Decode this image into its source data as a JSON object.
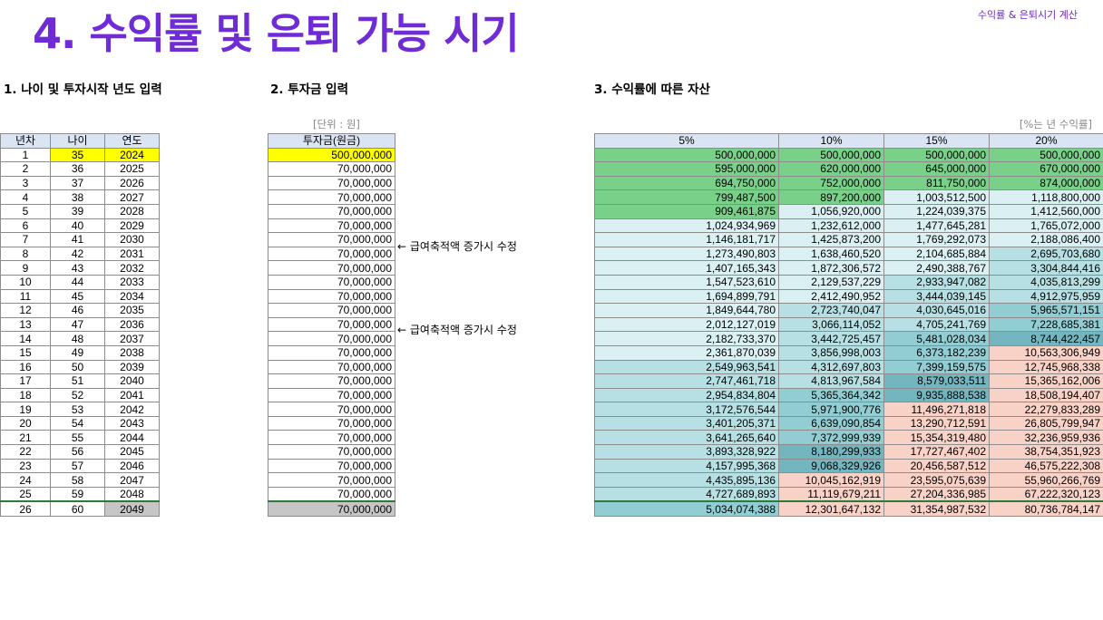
{
  "header": {
    "corner_label": "수익률 & 은퇴시기 계산",
    "title": "4. 수익률 및 은퇴 가능 시기"
  },
  "sections": {
    "s1": "1. 나이 및 투자시작 년도 입력",
    "s2": "2. 투자금 입력",
    "s3": "3. 수익률에 따른 자산"
  },
  "units": {
    "won": "[단위 : 원]",
    "rate": "[%는 년 수익률]"
  },
  "notes": {
    "n1": "← 급여축적액 증가시 수정",
    "n2": "← 급여축적액 증가시 수정"
  },
  "age_table": {
    "headers": [
      "년차",
      "나이",
      "연도"
    ],
    "rows": [
      [
        "1",
        "35",
        "2024"
      ],
      [
        "2",
        "36",
        "2025"
      ],
      [
        "3",
        "37",
        "2026"
      ],
      [
        "4",
        "38",
        "2027"
      ],
      [
        "5",
        "39",
        "2028"
      ],
      [
        "6",
        "40",
        "2029"
      ],
      [
        "7",
        "41",
        "2030"
      ],
      [
        "8",
        "42",
        "2031"
      ],
      [
        "9",
        "43",
        "2032"
      ],
      [
        "10",
        "44",
        "2033"
      ],
      [
        "11",
        "45",
        "2034"
      ],
      [
        "12",
        "46",
        "2035"
      ],
      [
        "13",
        "47",
        "2036"
      ],
      [
        "14",
        "48",
        "2037"
      ],
      [
        "15",
        "49",
        "2038"
      ],
      [
        "16",
        "50",
        "2039"
      ],
      [
        "17",
        "51",
        "2040"
      ],
      [
        "18",
        "52",
        "2041"
      ],
      [
        "19",
        "53",
        "2042"
      ],
      [
        "20",
        "54",
        "2043"
      ],
      [
        "21",
        "55",
        "2044"
      ],
      [
        "22",
        "56",
        "2045"
      ],
      [
        "23",
        "57",
        "2046"
      ],
      [
        "24",
        "58",
        "2047"
      ],
      [
        "25",
        "59",
        "2048"
      ],
      [
        "26",
        "60",
        "2049"
      ]
    ]
  },
  "invest_table": {
    "header": "투자금(원금)",
    "values": [
      "500,000,000",
      "70,000,000",
      "70,000,000",
      "70,000,000",
      "70,000,000",
      "70,000,000",
      "70,000,000",
      "70,000,000",
      "70,000,000",
      "70,000,000",
      "70,000,000",
      "70,000,000",
      "70,000,000",
      "70,000,000",
      "70,000,000",
      "70,000,000",
      "70,000,000",
      "70,000,000",
      "70,000,000",
      "70,000,000",
      "70,000,000",
      "70,000,000",
      "70,000,000",
      "70,000,000",
      "70,000,000",
      "70,000,000"
    ]
  },
  "asset_table": {
    "headers": [
      "5%",
      "10%",
      "15%",
      "20%"
    ],
    "rows": [
      [
        "500,000,000",
        "500,000,000",
        "500,000,000",
        "500,000,000"
      ],
      [
        "595,000,000",
        "620,000,000",
        "645,000,000",
        "670,000,000"
      ],
      [
        "694,750,000",
        "752,000,000",
        "811,750,000",
        "874,000,000"
      ],
      [
        "799,487,500",
        "897,200,000",
        "1,003,512,500",
        "1,118,800,000"
      ],
      [
        "909,461,875",
        "1,056,920,000",
        "1,224,039,375",
        "1,412,560,000"
      ],
      [
        "1,024,934,969",
        "1,232,612,000",
        "1,477,645,281",
        "1,765,072,000"
      ],
      [
        "1,146,181,717",
        "1,425,873,200",
        "1,769,292,073",
        "2,188,086,400"
      ],
      [
        "1,273,490,803",
        "1,638,460,520",
        "2,104,685,884",
        "2,695,703,680"
      ],
      [
        "1,407,165,343",
        "1,872,306,572",
        "2,490,388,767",
        "3,304,844,416"
      ],
      [
        "1,547,523,610",
        "2,129,537,229",
        "2,933,947,082",
        "4,035,813,299"
      ],
      [
        "1,694,899,791",
        "2,412,490,952",
        "3,444,039,145",
        "4,912,975,959"
      ],
      [
        "1,849,644,780",
        "2,723,740,047",
        "4,030,645,016",
        "5,965,571,151"
      ],
      [
        "2,012,127,019",
        "3,066,114,052",
        "4,705,241,769",
        "7,228,685,381"
      ],
      [
        "2,182,733,370",
        "3,442,725,457",
        "5,481,028,034",
        "8,744,422,457"
      ],
      [
        "2,361,870,039",
        "3,856,998,003",
        "6,373,182,239",
        "10,563,306,949"
      ],
      [
        "2,549,963,541",
        "4,312,697,803",
        "7,399,159,575",
        "12,745,968,338"
      ],
      [
        "2,747,461,718",
        "4,813,967,584",
        "8,579,033,511",
        "15,365,162,006"
      ],
      [
        "2,954,834,804",
        "5,365,364,342",
        "9,935,888,538",
        "18,508,194,407"
      ],
      [
        "3,172,576,544",
        "5,971,900,776",
        "11,496,271,818",
        "22,279,833,289"
      ],
      [
        "3,401,205,371",
        "6,639,090,854",
        "13,290,712,591",
        "26,805,799,947"
      ],
      [
        "3,641,265,640",
        "7,372,999,939",
        "15,354,319,480",
        "32,236,959,936"
      ],
      [
        "3,893,328,922",
        "8,180,299,933",
        "17,727,467,402",
        "38,754,351,923"
      ],
      [
        "4,157,995,368",
        "9,068,329,926",
        "20,456,587,512",
        "46,575,222,308"
      ],
      [
        "4,435,895,136",
        "10,045,162,919",
        "23,595,075,639",
        "55,960,266,769"
      ],
      [
        "4,727,689,893",
        "11,119,679,211",
        "27,204,336,985",
        "67,222,320,123"
      ],
      [
        "5,034,074,388",
        "12,301,647,132",
        "31,354,987,532",
        "80,736,784,147"
      ]
    ]
  },
  "colors": {
    "title": "#6f2bd6",
    "highlight_yellow": "#ffff00",
    "green": "#79d089",
    "light_teal": "#daf0f2",
    "mid_teal": "#b6e0e4",
    "teal": "#92cdd3",
    "dark_teal": "#74b6c0",
    "pink": "#f9d2c7"
  }
}
